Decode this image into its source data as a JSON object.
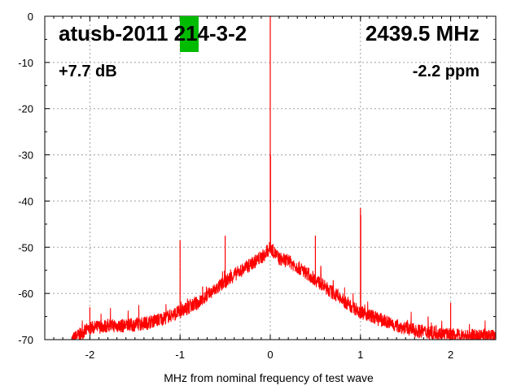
{
  "chart_data": {
    "type": "line",
    "title": "atusb-2011 214-3-2",
    "frequency_label": "2439.5 MHz",
    "gain_label": "+7.7 dB",
    "ppm_label": "-2.2 ppm",
    "xlabel": "MHz from nominal frequency of test wave",
    "ylabel": "",
    "xlim": [
      -2.5,
      2.5
    ],
    "ylim": [
      -70,
      0
    ],
    "xticks": [
      "-2",
      "-1",
      "0",
      "1",
      "2"
    ],
    "xtick_values": [
      -2,
      -1,
      0,
      1,
      2
    ],
    "yticks": [
      "0",
      "-10",
      "-20",
      "-30",
      "-40",
      "-50",
      "-60",
      "-70"
    ],
    "ytick_values": [
      0,
      -10,
      -20,
      -30,
      -40,
      -50,
      -60,
      -70
    ],
    "grid": true,
    "series": [
      {
        "name": "spectrum",
        "color": "#ff0000",
        "envelope_x": [
          -2.2,
          -2.0,
          -1.8,
          -1.6,
          -1.4,
          -1.2,
          -1.0,
          -0.8,
          -0.6,
          -0.4,
          -0.2,
          -0.05,
          0,
          0.1,
          0.2,
          0.4,
          0.6,
          0.8,
          1.0,
          1.2,
          1.4,
          1.6,
          1.8,
          2.0,
          2.2,
          2.5
        ],
        "envelope_y": [
          -70,
          -67.5,
          -67,
          -67,
          -66.5,
          -65.5,
          -64,
          -62,
          -59,
          -56,
          -53.5,
          -51.5,
          -50,
          -52.5,
          -53,
          -55.5,
          -58.5,
          -61.5,
          -64,
          -65.5,
          -67,
          -68,
          -68.5,
          -69,
          -69.2,
          -69.3
        ],
        "spikes": [
          {
            "x": 0,
            "y": 0
          },
          {
            "x": 0.003,
            "y": -30
          },
          {
            "x": -1,
            "y": -48.5
          },
          {
            "x": -0.5,
            "y": -47.5
          },
          {
            "x": 0.5,
            "y": -47.5
          },
          {
            "x": 1.0,
            "y": -41.5
          },
          {
            "x": 1.003,
            "y": -43
          },
          {
            "x": 2.0,
            "y": -62
          },
          {
            "x": -2.0,
            "y": -63
          },
          {
            "x": 1.75,
            "y": -65
          },
          {
            "x": -0.75,
            "y": -58.5
          },
          {
            "x": 0.75,
            "y": -59
          }
        ]
      }
    ]
  }
}
